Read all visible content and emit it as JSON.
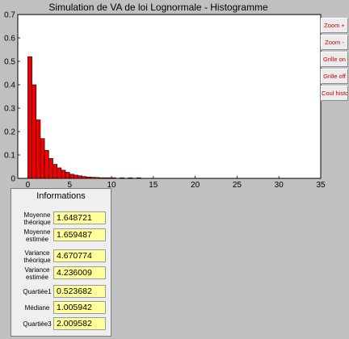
{
  "window": {
    "title": "Simulation de VA de loi Lognormale - Histogramme"
  },
  "chart_data": {
    "type": "bar",
    "title": "Simulation de VA de loi Lognormale - Histogramme",
    "xlabel": "",
    "ylabel": "",
    "xlim": [
      -1.2,
      35
    ],
    "ylim": [
      0,
      0.7
    ],
    "x_ticks": [
      0,
      5,
      10,
      15,
      20,
      25,
      30,
      35
    ],
    "y_ticks": [
      0,
      0.1,
      0.2,
      0.3,
      0.4,
      0.5,
      0.6,
      0.7
    ],
    "bar_width": 0.5,
    "bar_color": "#ee0000",
    "bin_starts": [
      0,
      0.5,
      1,
      1.5,
      2,
      2.5,
      3,
      3.5,
      4,
      4.5,
      5,
      5.5,
      6,
      6.5,
      7,
      7.5,
      8,
      8.5,
      9,
      9.5,
      10,
      11,
      12,
      13
    ],
    "values": [
      0.52,
      0.4,
      0.25,
      0.17,
      0.12,
      0.085,
      0.06,
      0.045,
      0.035,
      0.026,
      0.018,
      0.014,
      0.011,
      0.008,
      0.006,
      0.005,
      0.004,
      0.003,
      0.002,
      0.002,
      0.001,
      0.001,
      0.001,
      0.001
    ],
    "grid": false
  },
  "buttons": [
    {
      "label": "Zoom +"
    },
    {
      "label": "Zoom -"
    },
    {
      "label": "Grille on"
    },
    {
      "label": "Grille off"
    },
    {
      "label": "Coul histo"
    }
  ],
  "info": {
    "title": "Informations",
    "rows": [
      {
        "label": "Moyenne théorique",
        "value": "1.648721"
      },
      {
        "label": "Moyenne estimée",
        "value": "1.659487"
      },
      {
        "label": "Variance théorique",
        "value": "4.670774"
      },
      {
        "label": "Variance estimée",
        "value": "4.236009"
      },
      {
        "label": "Quartiée1",
        "value": "0.523682"
      },
      {
        "label": "Médiane",
        "value": "1.005942"
      },
      {
        "label": "Quartiée3",
        "value": "2.009582"
      }
    ]
  }
}
